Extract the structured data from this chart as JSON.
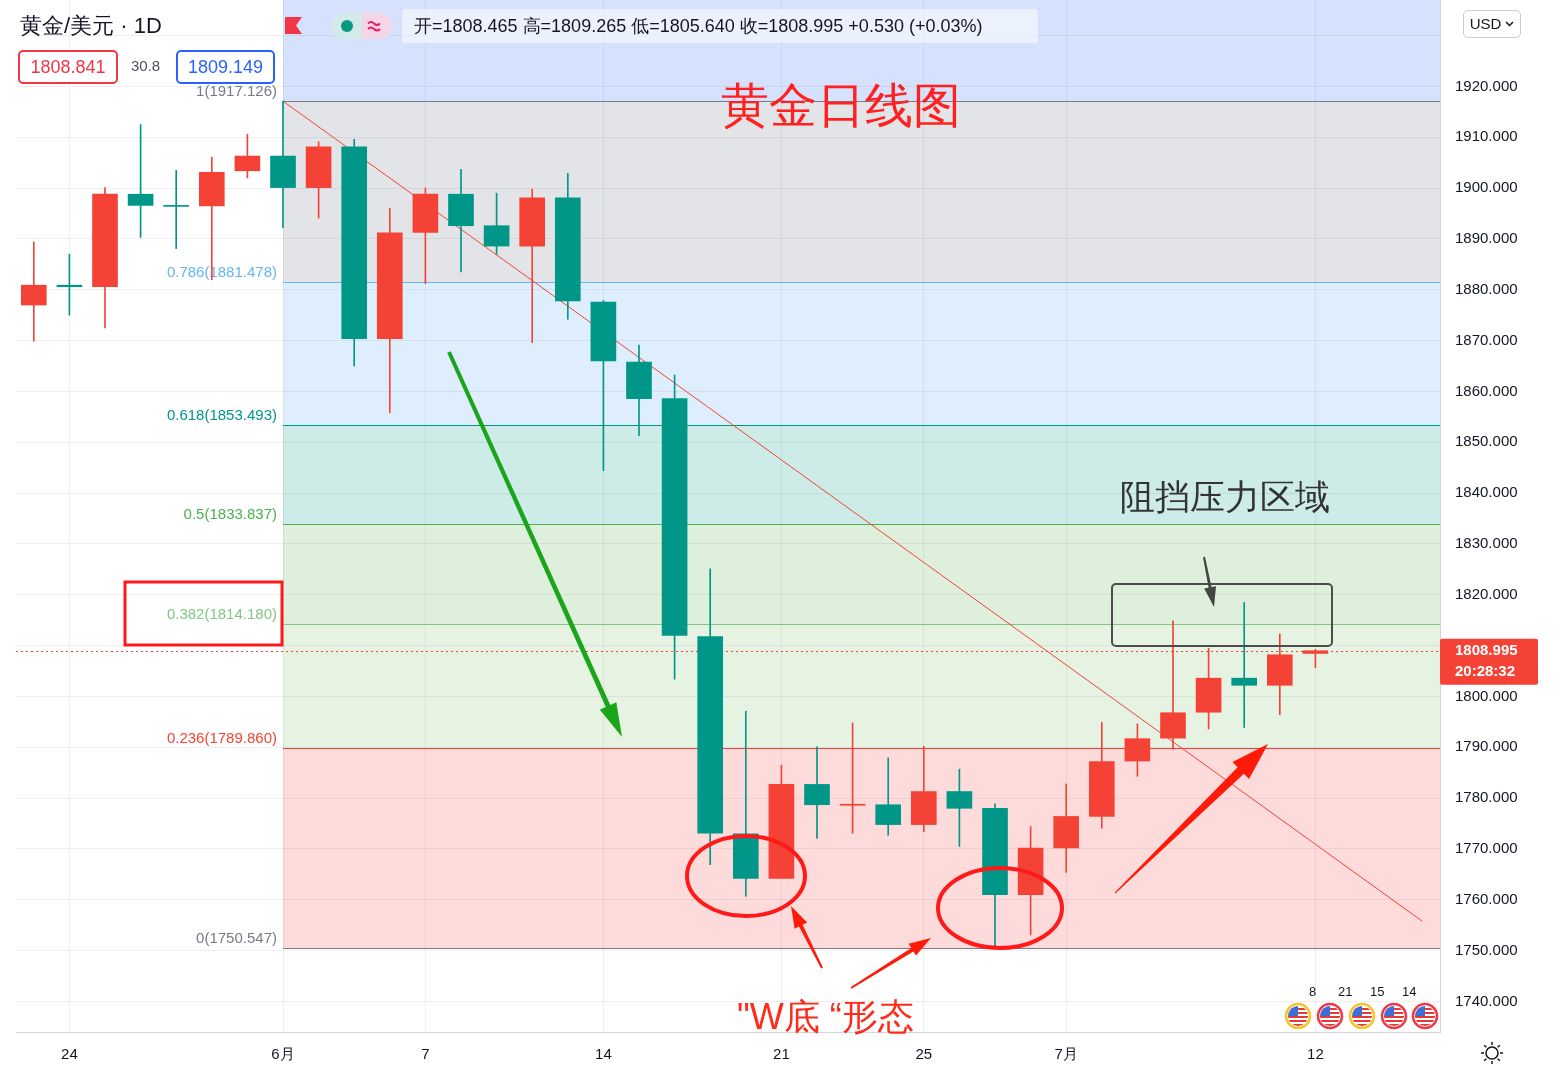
{
  "chart_data": {
    "type": "candlestick",
    "title": "黄金日线图",
    "subtitle": "黄金/美元 · 1D",
    "categories": [
      null,
      "24",
      null,
      null,
      null,
      null,
      null,
      "6月",
      null,
      null,
      null,
      "7",
      null,
      null,
      null,
      null,
      "14",
      null,
      null,
      null,
      null,
      "21",
      null,
      null,
      null,
      "25",
      null,
      null,
      null,
      "7月",
      null,
      null,
      null,
      null,
      null,
      null,
      "12",
      null,
      null,
      null
    ],
    "ohlc": [
      [
        1877.0,
        1889.4,
        1869.9,
        1880.9
      ],
      [
        1880.9,
        1887.0,
        1875.0,
        1880.6
      ],
      [
        1880.6,
        1900.1,
        1872.5,
        1898.8
      ],
      [
        1898.8,
        1912.5,
        1890.3,
        1896.6
      ],
      [
        1896.6,
        1903.5,
        1888.1,
        1896.4
      ],
      [
        1896.5,
        1906.1,
        1882.0,
        1903.1
      ],
      [
        1903.4,
        1910.6,
        1902.0,
        1906.3
      ],
      [
        1906.3,
        1917.126,
        1892.2,
        1900.1
      ],
      [
        1900.1,
        1909.1,
        1894.1,
        1908.1
      ],
      [
        1908.1,
        1909.6,
        1865.0,
        1870.4
      ],
      [
        1870.4,
        1896.0,
        1855.8,
        1891.2
      ],
      [
        1891.3,
        1900.0,
        1881.2,
        1898.8
      ],
      [
        1898.8,
        1903.7,
        1883.5,
        1892.6
      ],
      [
        1892.6,
        1899.0,
        1887.0,
        1888.6
      ],
      [
        1888.6,
        1899.8,
        1869.6,
        1898.1
      ],
      [
        1898.1,
        1902.9,
        1874.2,
        1877.8
      ],
      [
        1877.6,
        1877.9,
        1844.4,
        1866.0
      ],
      [
        1865.8,
        1869.1,
        1851.3,
        1858.6
      ],
      [
        1858.6,
        1863.2,
        1803.4,
        1812.0
      ],
      [
        1811.8,
        1825.1,
        1766.9,
        1773.1
      ],
      [
        1773.0,
        1797.1,
        1760.7,
        1764.2
      ],
      [
        1764.2,
        1786.5,
        1764.2,
        1782.7
      ],
      [
        1782.7,
        1790.1,
        1772.1,
        1778.7
      ],
      [
        1778.6,
        1794.8,
        1773.1,
        1778.8
      ],
      [
        1778.7,
        1787.9,
        1772.7,
        1774.8
      ],
      [
        1774.8,
        1790.2,
        1773.4,
        1781.3
      ],
      [
        1781.3,
        1785.7,
        1770.5,
        1778.0
      ],
      [
        1778.0,
        1778.9,
        1750.547,
        1761.0
      ],
      [
        1761.0,
        1774.4,
        1753.1,
        1770.2
      ],
      [
        1770.2,
        1782.8,
        1765.4,
        1776.4
      ],
      [
        1776.4,
        1794.9,
        1774.1,
        1787.2
      ],
      [
        1787.3,
        1794.6,
        1784.3,
        1791.7
      ],
      [
        1791.8,
        1814.9,
        1789.6,
        1796.8
      ],
      [
        1796.9,
        1809.5,
        1793.6,
        1803.6
      ],
      [
        1803.6,
        1818.5,
        1793.9,
        1802.2
      ],
      [
        1802.2,
        1812.3,
        1796.4,
        1808.2
      ],
      [
        1808.465,
        1809.265,
        1805.64,
        1808.995
      ],
      null,
      null,
      null
    ],
    "colors": [
      "#f44336",
      "#009688",
      "#f44336",
      "#009688",
      "#009688",
      "#f44336",
      "#f44336",
      "#009688",
      "#f44336",
      "#009688",
      "#f44336",
      "#f44336",
      "#009688",
      "#009688",
      "#f44336",
      "#009688",
      "#009688",
      "#009688",
      "#009688",
      "#009688",
      "#009688",
      "#f44336",
      "#009688",
      "#f44336",
      "#009688",
      "#f44336",
      "#009688",
      "#009688",
      "#f44336",
      "#f44336",
      "#f44336",
      "#f44336",
      "#f44336",
      "#f44336",
      "#009688",
      "#f44336",
      "#f44336",
      null,
      null,
      null
    ],
    "series": [
      {
        "type": "line",
        "color": "#f44336",
        "values": [
          null,
          null,
          null,
          null,
          null,
          null,
          null,
          1917.1,
          null,
          null,
          null,
          null,
          null,
          null,
          null,
          null,
          null,
          null,
          null,
          null,
          null,
          null,
          null,
          null,
          null,
          null,
          null,
          null,
          null,
          null,
          null,
          null,
          null,
          null,
          null,
          null,
          null,
          null,
          null,
          1755.8
        ]
      }
    ],
    "ylim": [
      1734,
      1937
    ],
    "yticks": [
      {
        "value": 1740,
        "label": "1740.000"
      },
      {
        "value": 1750,
        "label": "1750.000"
      },
      {
        "value": 1760,
        "label": "1760.000"
      },
      {
        "value": 1770,
        "label": "1770.000"
      },
      {
        "value": 1780,
        "label": "1780.000"
      },
      {
        "value": 1790,
        "label": "1790.000"
      },
      {
        "value": 1800,
        "label": "1800.000"
      },
      {
        "value": 1810,
        "label": null
      },
      {
        "value": 1820,
        "label": "1820.000"
      },
      {
        "value": 1830,
        "label": "1830.000"
      },
      {
        "value": 1840,
        "label": "1840.000"
      },
      {
        "value": 1850,
        "label": "1850.000"
      },
      {
        "value": 1860,
        "label": "1860.000"
      },
      {
        "value": 1870,
        "label": "1870.000"
      },
      {
        "value": 1880,
        "label": "1880.000"
      },
      {
        "value": 1890,
        "label": "1890.000"
      },
      {
        "value": 1900,
        "label": "1900.000"
      },
      {
        "value": 1910,
        "label": "1910.000"
      },
      {
        "value": 1920,
        "label": "1920.000"
      },
      {
        "value": 1930,
        "label": null
      }
    ],
    "grid": true,
    "ref_lines": [
      {
        "axis": "y",
        "value": 1917.126,
        "label": "1(1917.126)",
        "color": "#787b86"
      },
      {
        "axis": "y",
        "value": 1881.478,
        "label": "0.786(1881.478)",
        "color": "#64b5f6"
      },
      {
        "axis": "y",
        "value": 1853.493,
        "label": "0.618(1853.493)",
        "color": "#009688"
      },
      {
        "axis": "y",
        "value": 1833.837,
        "label": "0.5(1833.837)",
        "color": "#4caf50"
      },
      {
        "axis": "y",
        "value": 1814.18,
        "label": "0.382(1814.180)",
        "color": "#81c784"
      },
      {
        "axis": "y",
        "value": 1789.86,
        "label": "0.236(1789.860)",
        "color": "#f44336"
      },
      {
        "axis": "y",
        "value": 1750.547,
        "label": "0(1750.547)",
        "color": "#787b86"
      },
      {
        "axis": "y",
        "value": 1808.995,
        "label": "1808.995",
        "color": "#f44336",
        "line_style": "dotted"
      }
    ],
    "bands": [
      {
        "axis": "y",
        "from": 1917.126,
        "to": 1937,
        "color": "#d6e1fd"
      },
      {
        "axis": "y",
        "from": 1881.478,
        "to": 1917.126,
        "color": "#e3e4e7"
      },
      {
        "axis": "y",
        "from": 1853.493,
        "to": 1881.478,
        "color": "#dfeefc"
      },
      {
        "axis": "y",
        "from": 1833.837,
        "to": 1853.493,
        "color": "#cdebe7"
      },
      {
        "axis": "y",
        "from": 1814.18,
        "to": 1833.837,
        "color": "#deefdc"
      },
      {
        "axis": "y",
        "from": 1789.86,
        "to": 1814.18,
        "color": "#e6f3e3"
      },
      {
        "axis": "y",
        "from": 1750.547,
        "to": 1789.86,
        "color": "#fddbda"
      }
    ],
    "annotations": [
      "开=1808.465 高=1809.265 低=1805.640 收=1808.995 +0.530 (+0.03%)",
      "1808.841",
      "30.8",
      "1809.149",
      "USD",
      "阻挡压力区域",
      "\"W底 “形态",
      "20:28:32",
      "8",
      "21",
      "15",
      "14"
    ]
  }
}
